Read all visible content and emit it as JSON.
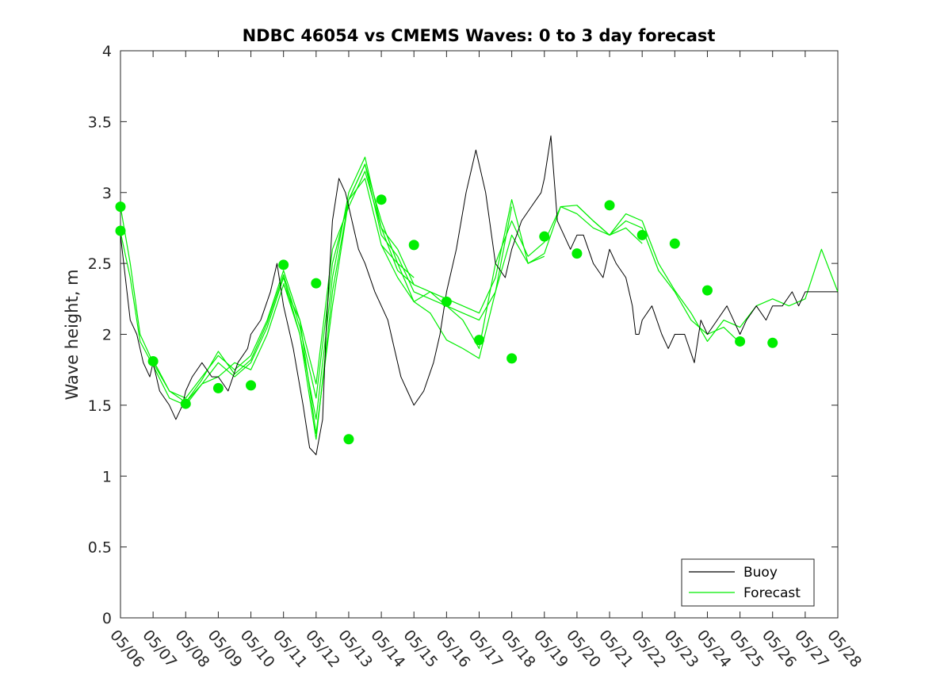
{
  "chart_data": {
    "type": "line",
    "title": "NDBC 46054 vs CMEMS Waves: 0 to 3 day forecast",
    "xlabel": "",
    "ylabel": "Wave height, m",
    "xlim": [
      "05/06",
      "05/28"
    ],
    "ylim": [
      0,
      4
    ],
    "yticks": [
      0,
      0.5,
      1,
      1.5,
      2,
      2.5,
      3,
      3.5,
      4
    ],
    "xticks": [
      "05/06",
      "05/07",
      "05/08",
      "05/09",
      "05/10",
      "05/11",
      "05/12",
      "05/13",
      "05/14",
      "05/15",
      "05/16",
      "05/17",
      "05/18",
      "05/19",
      "05/20",
      "05/21",
      "05/22",
      "05/23",
      "05/24",
      "05/25",
      "05/26",
      "05/27",
      "05/28"
    ],
    "grid": false,
    "legend": {
      "position": "bottom-right",
      "entries": [
        "Buoy",
        "Forecast"
      ]
    },
    "colors": {
      "buoy": "#000000",
      "forecast": "#00ee00"
    },
    "series": [
      {
        "name": "Buoy",
        "x": [
          0,
          0.1,
          0.2,
          0.3,
          0.5,
          0.7,
          0.9,
          1.0,
          1.2,
          1.5,
          1.7,
          1.9,
          2.0,
          2.2,
          2.5,
          2.8,
          3.0,
          3.3,
          3.6,
          3.9,
          4.0,
          4.3,
          4.6,
          4.8,
          5.0,
          5.3,
          5.6,
          5.8,
          6.0,
          6.2,
          6.3,
          6.5,
          6.7,
          6.9,
          7.0,
          7.1,
          7.2,
          7.3,
          7.5,
          7.8,
          8.0,
          8.2,
          8.4,
          8.6,
          8.8,
          9.0,
          9.3,
          9.6,
          9.8,
          10.0,
          10.3,
          10.6,
          10.9,
          11.2,
          11.5,
          11.8,
          12.0,
          12.3,
          12.6,
          12.9,
          13.0,
          13.2,
          13.4,
          13.6,
          13.8,
          14.0,
          14.2,
          14.5,
          14.8,
          15.0,
          15.2,
          15.5,
          15.7,
          15.8,
          15.9,
          16.0,
          16.3,
          16.6,
          16.8,
          17.0,
          17.3,
          17.6,
          17.8,
          18.0,
          18.3,
          18.6,
          18.8,
          19.0,
          19.2,
          19.5,
          19.8,
          20.0,
          20.3,
          20.6,
          20.8,
          21.0,
          21.5,
          22.0
        ],
        "y": [
          2.7,
          2.5,
          2.3,
          2.1,
          2.0,
          1.8,
          1.7,
          1.8,
          1.6,
          1.5,
          1.4,
          1.5,
          1.6,
          1.7,
          1.8,
          1.7,
          1.7,
          1.6,
          1.8,
          1.9,
          2.0,
          2.1,
          2.3,
          2.5,
          2.2,
          1.9,
          1.5,
          1.2,
          1.15,
          1.4,
          2.0,
          2.8,
          3.1,
          3.0,
          2.9,
          2.8,
          2.7,
          2.6,
          2.5,
          2.3,
          2.2,
          2.1,
          1.9,
          1.7,
          1.6,
          1.5,
          1.6,
          1.8,
          2.0,
          2.3,
          2.6,
          3.0,
          3.3,
          3.0,
          2.5,
          2.4,
          2.6,
          2.8,
          2.9,
          3.0,
          3.1,
          3.4,
          2.8,
          2.7,
          2.6,
          2.7,
          2.7,
          2.5,
          2.4,
          2.6,
          2.5,
          2.4,
          2.2,
          2.0,
          2.0,
          2.1,
          2.2,
          2.0,
          1.9,
          2.0,
          2.0,
          1.8,
          2.1,
          2.0,
          2.1,
          2.2,
          2.1,
          2.0,
          2.1,
          2.2,
          2.1,
          2.2,
          2.2,
          2.3,
          2.2,
          2.3,
          2.3,
          2.3
        ]
      },
      {
        "name": "Forecast",
        "runs": [
          {
            "x": [
              0,
              0.3,
              0.6,
              1.0,
              1.5,
              2.0,
              2.5,
              3.0,
              3.5,
              4.0,
              4.5,
              5.0,
              5.5,
              6.0,
              6.5,
              7.0,
              7.5,
              8.0,
              8.5,
              9.0
            ],
            "y": [
              2.9,
              2.5,
              2.0,
              1.8,
              1.6,
              1.55,
              1.7,
              1.85,
              1.75,
              1.85,
              2.1,
              2.45,
              2.1,
              1.3,
              2.2,
              2.95,
              3.2,
              2.8,
              2.5,
              2.4
            ]
          },
          {
            "x": [
              0,
              0.3,
              0.6,
              1.0,
              1.5,
              2.0,
              2.5,
              3.0,
              3.5,
              4.0,
              4.5,
              5.0,
              5.5,
              6.0,
              6.5,
              7.0,
              7.5,
              8.0,
              8.5,
              9.0
            ],
            "y": [
              2.72,
              2.4,
              1.95,
              1.78,
              1.55,
              1.5,
              1.65,
              1.8,
              1.7,
              1.8,
              2.05,
              2.4,
              2.0,
              1.4,
              2.4,
              3.0,
              3.25,
              2.75,
              2.45,
              2.35
            ]
          },
          {
            "x": [
              1.0,
              1.5,
              2.0,
              2.5,
              3.0,
              3.5,
              4.0,
              4.5,
              5.0,
              5.5,
              6.0,
              6.5,
              7.0,
              7.5,
              8.0,
              8.5,
              9.0,
              9.5,
              10.0,
              10.5,
              11.0,
              11.5,
              12.0
            ],
            "y": [
              1.82,
              1.6,
              1.52,
              1.68,
              1.88,
              1.72,
              1.82,
              2.08,
              2.42,
              2.05,
              1.55,
              2.5,
              2.95,
              3.2,
              2.7,
              2.55,
              2.3,
              2.25,
              2.2,
              2.15,
              2.1,
              2.3,
              2.9
            ]
          },
          {
            "x": [
              2.0,
              2.5,
              3.0,
              3.5,
              4.0,
              4.5,
              5.0,
              5.5,
              6.0,
              6.5,
              7.0,
              7.5,
              8.0,
              8.5,
              9.0,
              9.5,
              10.0,
              10.5,
              11.0,
              11.5,
              12.0,
              12.5,
              13.0
            ],
            "y": [
              1.52,
              1.65,
              1.7,
              1.8,
              1.75,
              2.0,
              2.35,
              2.1,
              1.65,
              2.6,
              2.9,
              3.15,
              2.75,
              2.6,
              2.35,
              2.3,
              2.25,
              2.2,
              2.15,
              2.4,
              2.95,
              2.5,
              2.55
            ]
          },
          {
            "x": [
              5.0,
              5.5,
              6.0,
              6.5,
              7.0,
              7.5,
              8.0,
              8.5,
              9.0,
              9.5,
              10.0,
              10.5,
              11.0,
              11.5,
              12.0,
              12.5,
              13.0,
              13.5,
              14.0,
              14.5,
              15.0,
              15.5,
              16.0
            ],
            "y": [
              2.36,
              2.0,
              1.26,
              2.3,
              2.95,
              3.1,
              2.63,
              2.5,
              2.23,
              2.15,
              1.96,
              1.9,
              1.83,
              2.3,
              2.7,
              2.5,
              2.57,
              2.9,
              2.91,
              2.8,
              2.7,
              2.75,
              2.64
            ]
          },
          {
            "x": [
              8.0,
              8.5,
              9.0,
              9.5,
              10.0,
              10.5,
              11.0,
              11.5,
              12.0,
              12.5,
              13.0,
              13.5,
              14.0,
              14.5,
              15.0,
              15.5,
              16.0,
              16.5,
              17.0,
              17.5,
              18.0,
              18.5,
              19.0
            ],
            "y": [
              2.63,
              2.4,
              2.23,
              2.3,
              2.2,
              2.1,
              1.9,
              2.5,
              2.8,
              2.55,
              2.65,
              2.9,
              2.85,
              2.75,
              2.7,
              2.8,
              2.75,
              2.45,
              2.3,
              2.1,
              2.0,
              2.05,
              1.94
            ]
          },
          {
            "x": [
              14.0,
              14.5,
              15.0,
              15.5,
              16.0,
              16.5,
              17.0,
              17.5,
              18.0,
              18.5,
              19.0,
              19.5,
              20.0,
              20.5,
              21.0,
              21.5,
              22.0
            ],
            "y": [
              2.91,
              2.8,
              2.7,
              2.85,
              2.8,
              2.5,
              2.31,
              2.15,
              1.95,
              2.1,
              2.05,
              2.2,
              2.25,
              2.2,
              2.25,
              2.6,
              2.3
            ]
          }
        ]
      }
    ],
    "markers": {
      "x": [
        0,
        0,
        1,
        2,
        3,
        4,
        5,
        6,
        7,
        8,
        9,
        10,
        11,
        12,
        13,
        14,
        15,
        16,
        17,
        18,
        19,
        20
      ],
      "y": [
        2.9,
        2.73,
        1.81,
        1.51,
        1.62,
        1.64,
        2.49,
        2.36,
        1.26,
        2.95,
        2.63,
        2.23,
        1.96,
        1.83,
        2.69,
        2.57,
        2.91,
        2.7,
        2.64,
        2.31,
        1.95,
        1.94
      ]
    }
  }
}
